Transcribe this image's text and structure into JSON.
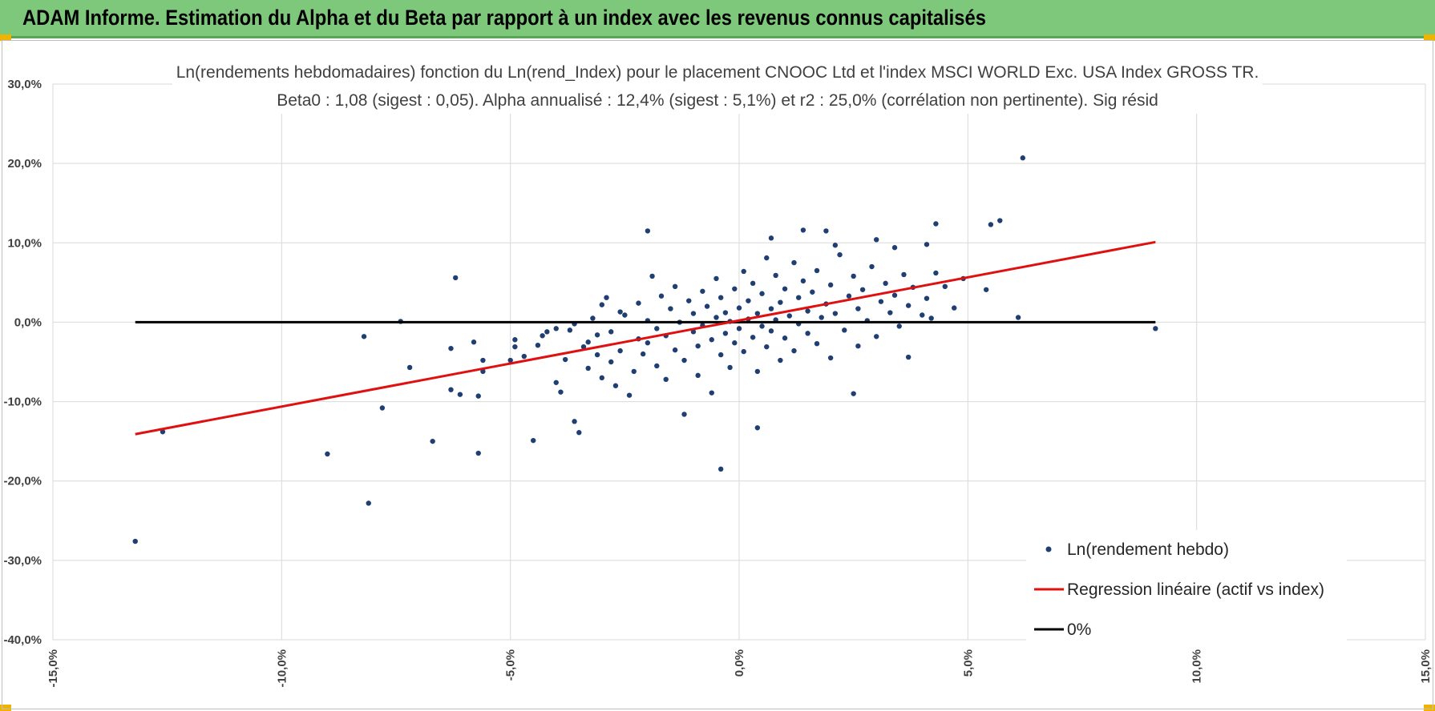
{
  "header": {
    "title": "ADAM Informe. Estimation du Alpha et du Beta par rapport à un index avec les revenus connus capitalisés"
  },
  "colors": {
    "banner": "#7dc87a",
    "corner_accent": "#f0b400",
    "points": "#1f3f73",
    "regression": "#e01010",
    "zero_line": "#000000",
    "grid": "#d9d9d9"
  },
  "chart_data": {
    "type": "scatter",
    "title": "Ln(rendements hebdomadaires) fonction du Ln(rend_Index) pour le placement CNOOC Ltd et l'index MSCI WORLD Exc. USA Index GROSS TR.",
    "subtitle": "Beta0 : 1,08 (sigest : 0,05). Alpha annualisé : 12,4% (sigest : 5,1%) et r2 : 25,0% (corrélation non pertinente). Sig résid",
    "xlabel": "",
    "ylabel": "",
    "xlim": [
      -0.15,
      0.15
    ],
    "ylim": [
      -0.4,
      0.3
    ],
    "x_ticks": [
      -0.15,
      -0.1,
      -0.05,
      0.0,
      0.05,
      0.1,
      0.15
    ],
    "x_tick_labels": [
      "-15,0%",
      "-10,0%",
      "-5,0%",
      "0,0%",
      "5,0%",
      "10,0%",
      "15,0%"
    ],
    "y_ticks": [
      0.3,
      0.2,
      0.1,
      0.0,
      -0.1,
      -0.2,
      -0.3,
      -0.4
    ],
    "y_tick_labels": [
      "30,0%",
      "20,0%",
      "10,0%",
      "0,0%",
      "-10,0%",
      "-20,0%",
      "-30,0%",
      "-40,0%"
    ],
    "grid": true,
    "legend_position": "bottom-right",
    "series": [
      {
        "name": "Ln(rendement hebdo)",
        "kind": "scatter",
        "points": [
          [
            -0.132,
            -0.276
          ],
          [
            -0.126,
            -0.138
          ],
          [
            -0.09,
            -0.166
          ],
          [
            -0.082,
            -0.018
          ],
          [
            -0.081,
            -0.228
          ],
          [
            -0.078,
            -0.108
          ],
          [
            -0.074,
            0.001
          ],
          [
            -0.072,
            -0.057
          ],
          [
            -0.067,
            -0.15
          ],
          [
            -0.063,
            -0.033
          ],
          [
            -0.063,
            -0.085
          ],
          [
            -0.062,
            0.056
          ],
          [
            -0.061,
            -0.091
          ],
          [
            -0.058,
            -0.025
          ],
          [
            -0.057,
            -0.165
          ],
          [
            -0.057,
            -0.093
          ],
          [
            -0.056,
            -0.048
          ],
          [
            -0.056,
            -0.062
          ],
          [
            -0.05,
            -0.048
          ],
          [
            -0.049,
            -0.031
          ],
          [
            -0.049,
            -0.022
          ],
          [
            -0.047,
            -0.043
          ],
          [
            -0.045,
            -0.149
          ],
          [
            -0.044,
            -0.029
          ],
          [
            -0.043,
            -0.017
          ],
          [
            -0.042,
            -0.012
          ],
          [
            -0.04,
            -0.008
          ],
          [
            -0.04,
            -0.076
          ],
          [
            -0.039,
            -0.088
          ],
          [
            -0.038,
            -0.047
          ],
          [
            -0.037,
            -0.01
          ],
          [
            -0.036,
            -0.002
          ],
          [
            -0.036,
            -0.125
          ],
          [
            -0.035,
            -0.139
          ],
          [
            -0.034,
            -0.031
          ],
          [
            -0.033,
            -0.058
          ],
          [
            -0.033,
            -0.025
          ],
          [
            -0.032,
            0.005
          ],
          [
            -0.031,
            -0.016
          ],
          [
            -0.031,
            -0.041
          ],
          [
            -0.03,
            -0.07
          ],
          [
            -0.03,
            0.022
          ],
          [
            -0.029,
            0.031
          ],
          [
            -0.028,
            -0.05
          ],
          [
            -0.028,
            -0.012
          ],
          [
            -0.027,
            -0.08
          ],
          [
            -0.026,
            0.013
          ],
          [
            -0.026,
            -0.036
          ],
          [
            -0.025,
            0.009
          ],
          [
            -0.024,
            -0.092
          ],
          [
            -0.023,
            -0.062
          ],
          [
            -0.022,
            -0.021
          ],
          [
            -0.022,
            0.024
          ],
          [
            -0.021,
            -0.04
          ],
          [
            -0.02,
            0.002
          ],
          [
            -0.02,
            -0.026
          ],
          [
            -0.019,
            0.058
          ],
          [
            -0.018,
            -0.055
          ],
          [
            -0.018,
            -0.008
          ],
          [
            -0.017,
            0.033
          ],
          [
            -0.016,
            -0.017
          ],
          [
            -0.016,
            -0.072
          ],
          [
            -0.015,
            0.017
          ],
          [
            -0.014,
            -0.035
          ],
          [
            -0.014,
            0.045
          ],
          [
            -0.013,
            0.0
          ],
          [
            -0.012,
            -0.116
          ],
          [
            -0.012,
            -0.048
          ],
          [
            -0.011,
            0.027
          ],
          [
            -0.01,
            -0.012
          ],
          [
            -0.01,
            0.011
          ],
          [
            -0.009,
            -0.067
          ],
          [
            -0.009,
            -0.03
          ],
          [
            -0.008,
            0.039
          ],
          [
            -0.008,
            -0.004
          ],
          [
            -0.007,
            0.02
          ],
          [
            -0.006,
            -0.089
          ],
          [
            -0.006,
            -0.022
          ],
          [
            -0.005,
            0.055
          ],
          [
            -0.005,
            0.006
          ],
          [
            -0.004,
            -0.041
          ],
          [
            -0.004,
            0.031
          ],
          [
            -0.003,
            -0.014
          ],
          [
            -0.003,
            0.012
          ],
          [
            -0.002,
            -0.057
          ],
          [
            -0.002,
            0.001
          ],
          [
            -0.001,
            0.042
          ],
          [
            -0.001,
            -0.026
          ],
          [
            0.0,
            0.018
          ],
          [
            0.0,
            -0.008
          ],
          [
            0.001,
            0.064
          ],
          [
            0.001,
            -0.037
          ],
          [
            0.002,
            0.004
          ],
          [
            0.002,
            0.027
          ],
          [
            0.003,
            -0.019
          ],
          [
            0.003,
            0.049
          ],
          [
            0.004,
            -0.062
          ],
          [
            0.004,
            0.011
          ],
          [
            0.005,
            -0.005
          ],
          [
            0.005,
            0.036
          ],
          [
            0.006,
            0.081
          ],
          [
            0.006,
            -0.031
          ],
          [
            0.007,
            0.017
          ],
          [
            0.007,
            -0.011
          ],
          [
            0.008,
            0.059
          ],
          [
            0.008,
            0.003
          ],
          [
            0.009,
            -0.048
          ],
          [
            0.009,
            0.025
          ],
          [
            0.01,
            0.042
          ],
          [
            0.01,
            -0.02
          ],
          [
            0.011,
            0.008
          ],
          [
            0.012,
            0.075
          ],
          [
            0.012,
            -0.036
          ],
          [
            0.013,
            0.031
          ],
          [
            0.013,
            -0.002
          ],
          [
            0.014,
            0.052
          ],
          [
            0.015,
            -0.014
          ],
          [
            0.015,
            0.014
          ],
          [
            0.016,
            0.038
          ],
          [
            0.017,
            -0.027
          ],
          [
            0.017,
            0.065
          ],
          [
            0.018,
            0.006
          ],
          [
            0.019,
            0.023
          ],
          [
            0.02,
            -0.045
          ],
          [
            0.02,
            0.047
          ],
          [
            0.021,
            0.011
          ],
          [
            0.022,
            0.085
          ],
          [
            0.023,
            -0.01
          ],
          [
            0.024,
            0.033
          ],
          [
            0.025,
            0.058
          ],
          [
            0.026,
            -0.03
          ],
          [
            0.026,
            0.017
          ],
          [
            0.027,
            0.041
          ],
          [
            0.028,
            0.002
          ],
          [
            0.029,
            0.07
          ],
          [
            0.03,
            -0.018
          ],
          [
            0.031,
            0.026
          ],
          [
            0.032,
            0.049
          ],
          [
            0.033,
            0.012
          ],
          [
            0.034,
            0.034
          ],
          [
            0.035,
            -0.005
          ],
          [
            0.036,
            0.06
          ],
          [
            0.037,
            0.021
          ],
          [
            0.038,
            0.044
          ],
          [
            0.04,
            0.009
          ],
          [
            0.041,
            0.03
          ],
          [
            0.043,
            0.062
          ],
          [
            0.045,
            0.045
          ],
          [
            0.047,
            0.018
          ],
          [
            0.049,
            0.055
          ],
          [
            -0.004,
            -0.185
          ],
          [
            0.004,
            -0.133
          ],
          [
            0.019,
            0.115
          ],
          [
            0.041,
            0.098
          ],
          [
            0.043,
            0.124
          ],
          [
            0.054,
            0.041
          ],
          [
            0.055,
            0.123
          ],
          [
            0.057,
            0.128
          ],
          [
            0.062,
            0.207
          ],
          [
            0.061,
            0.006
          ],
          [
            0.091,
            -0.008
          ],
          [
            0.025,
            -0.09
          ],
          [
            -0.02,
            0.115
          ],
          [
            0.007,
            0.106
          ],
          [
            0.014,
            0.116
          ],
          [
            0.021,
            0.097
          ],
          [
            0.03,
            0.104
          ],
          [
            0.034,
            0.094
          ],
          [
            0.037,
            -0.044
          ],
          [
            0.042,
            0.005
          ]
        ]
      },
      {
        "name": "Regression linéaire (actif vs index)",
        "kind": "line",
        "points": [
          [
            -0.132,
            -0.141
          ],
          [
            0.091,
            0.101
          ]
        ]
      },
      {
        "name": "0%",
        "kind": "line",
        "points": [
          [
            -0.132,
            0.0
          ],
          [
            0.091,
            0.0
          ]
        ]
      }
    ]
  }
}
